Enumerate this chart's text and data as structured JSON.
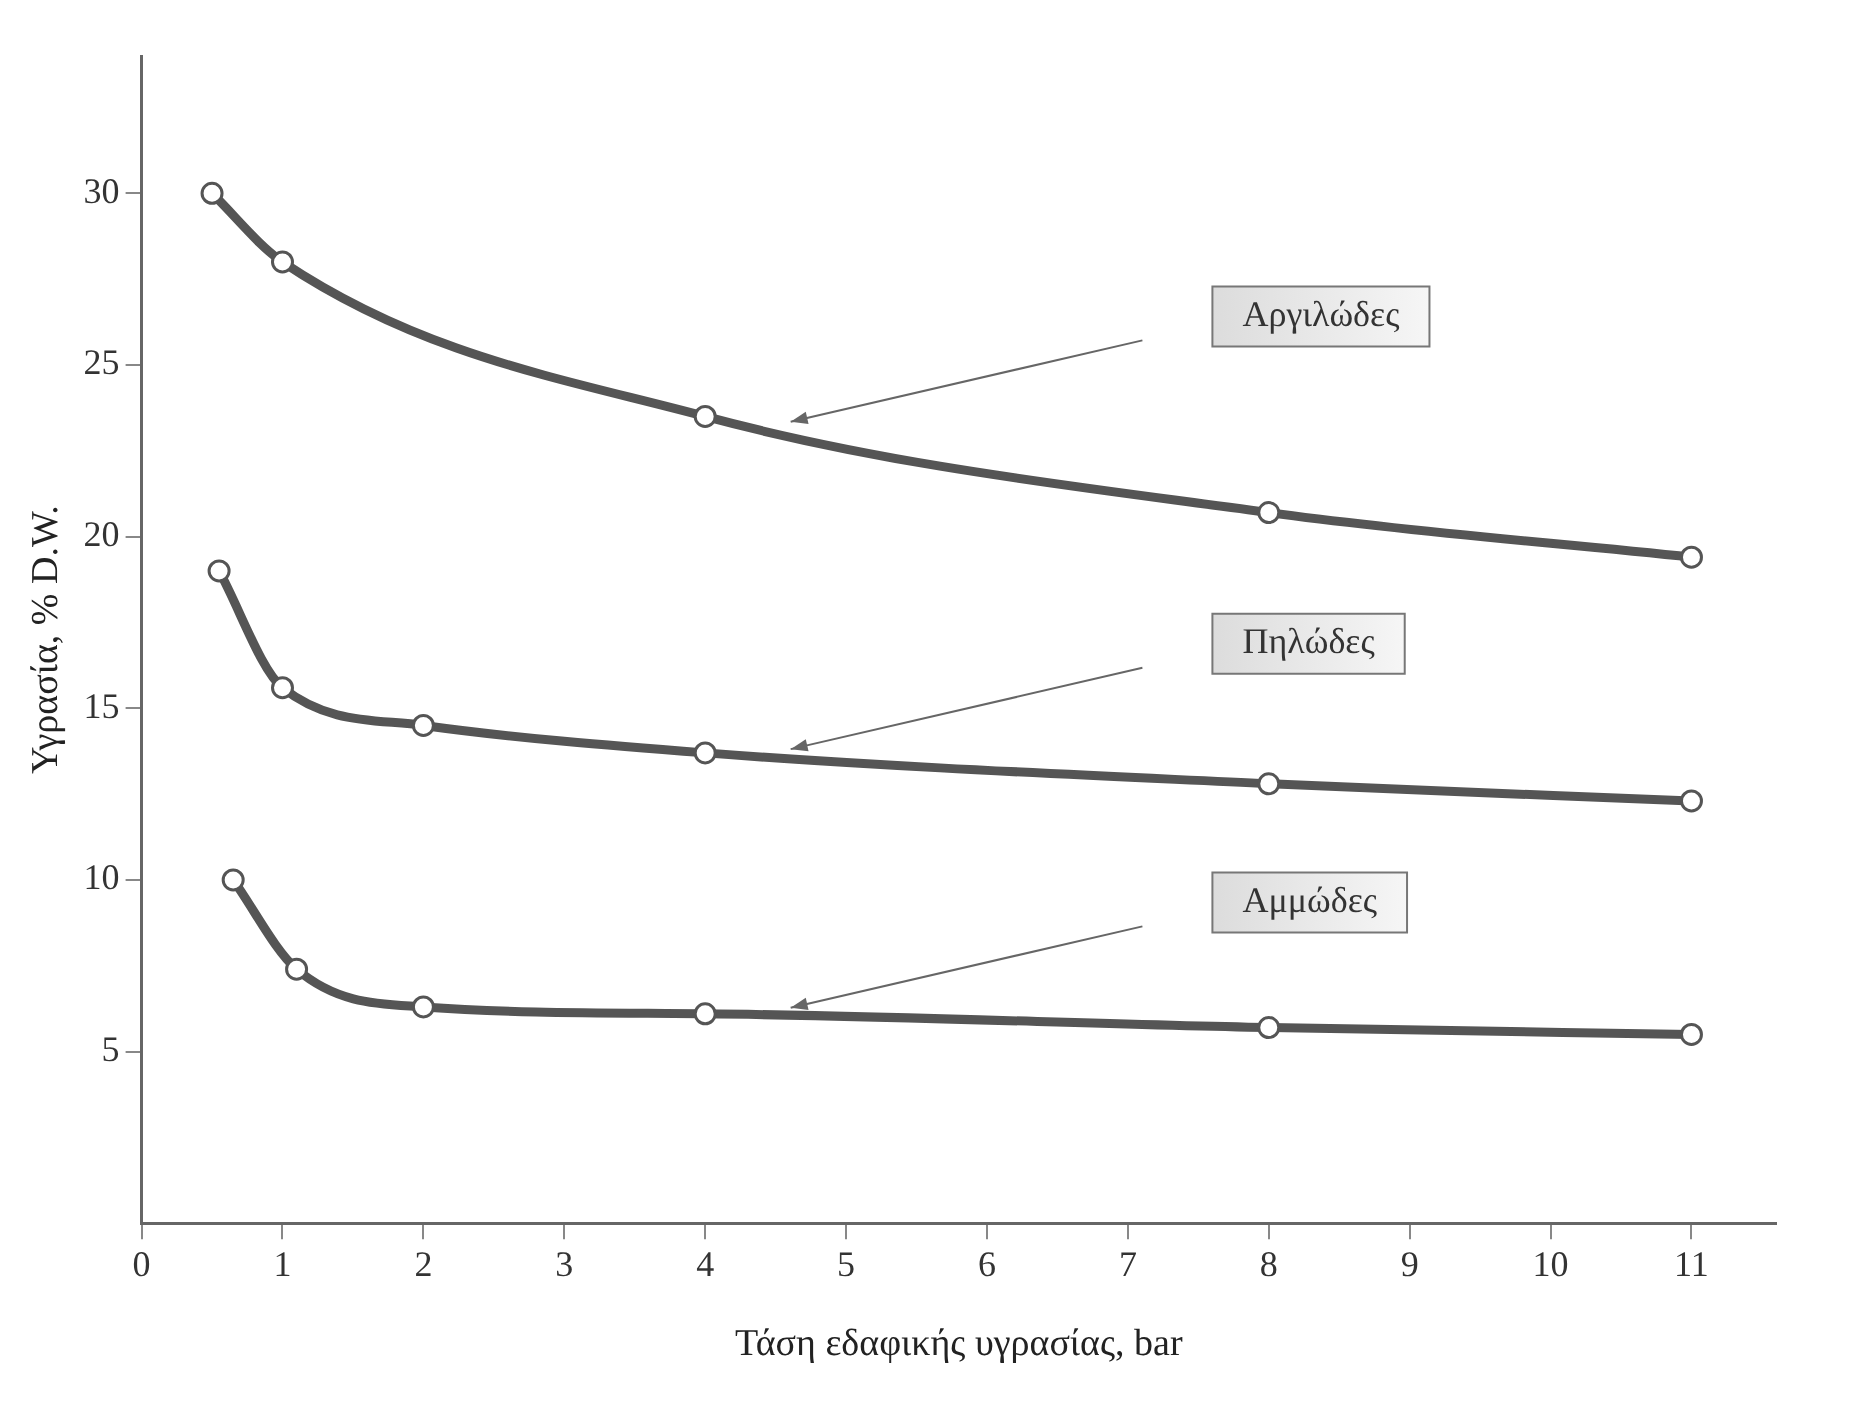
{
  "chart_data": {
    "type": "line",
    "xlabel": "Τάση εδαφικής υγρασίας, bar",
    "ylabel": "Υγρασία, % D.W.",
    "xlim": [
      0,
      11.6
    ],
    "xticks": [
      0,
      1,
      2,
      3,
      4,
      5,
      6,
      7,
      8,
      9,
      10,
      11
    ],
    "ylim": [
      0,
      34
    ],
    "yticks": [
      5,
      10,
      15,
      20,
      25,
      30
    ],
    "marker": "circle",
    "grid": false,
    "legend": false,
    "series": [
      {
        "name": "Αργιλώδες",
        "color": "#555555",
        "x": [
          0.5,
          1,
          4,
          8,
          11
        ],
        "values": [
          30,
          28,
          23.5,
          20.7,
          19.4
        ]
      },
      {
        "name": "Πηλώδες",
        "color": "#555555",
        "x": [
          0.55,
          1,
          2,
          4,
          8,
          11
        ],
        "values": [
          19,
          15.6,
          14.5,
          13.7,
          12.8,
          12.3
        ]
      },
      {
        "name": "Αμμώδες",
        "color": "#555555",
        "x": [
          0.65,
          1.1,
          2,
          4,
          8,
          11
        ],
        "values": [
          10,
          7.4,
          6.3,
          6.1,
          5.7,
          5.5
        ]
      }
    ]
  }
}
